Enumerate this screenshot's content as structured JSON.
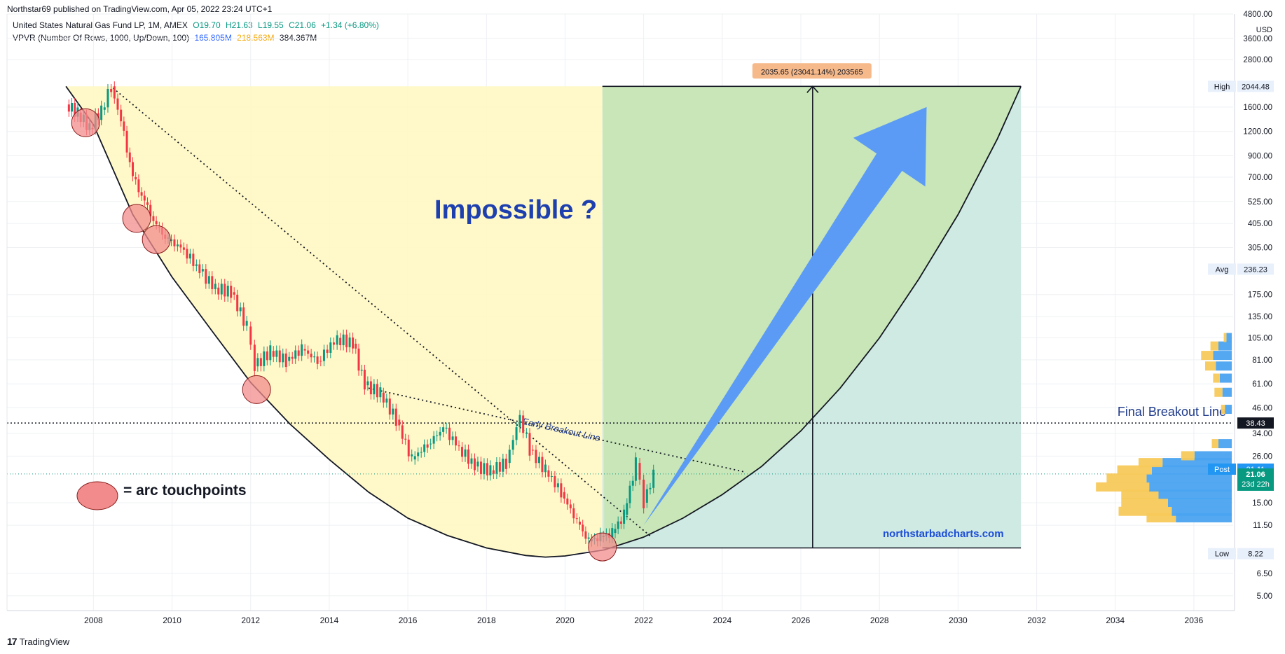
{
  "header": {
    "published": "Northstar69 published on TradingView.com, Apr 05, 2022 23:24 UTC+1"
  },
  "legend": {
    "symbol": "United States Natural Gas Fund LP, 1M, AMEX",
    "open": "O19.70",
    "high": "H21.63",
    "low": "L19.55",
    "close": "C21.06",
    "change": "+1.34 (+6.80%)",
    "vpvr_label": "VPVR (Number Of Rows, 1000, Up/Down, 100)",
    "vpvr_up": "165.805M",
    "vpvr_down": "218.563M",
    "vpvr_total": "384.367M"
  },
  "footer": {
    "brand": "TradingView",
    "logo": "17"
  },
  "colors": {
    "up": "#089981",
    "down": "#f23645",
    "yellow_zone": "#fff7c2",
    "green_zone": "#c8e6b8",
    "teal_zone": "#cfe9e3",
    "arrow": "#5b9bf5",
    "touch": "#f28c8c",
    "vp_up": "#4aa3f0",
    "vp_down": "#f7c95a"
  },
  "chart_data": {
    "type": "candlestick",
    "title": "",
    "yscale": "log",
    "ylim": [
      4.2,
      4800
    ],
    "xlim": [
      2005.8,
      2037.0
    ],
    "x_ticks": [
      "2008",
      "2010",
      "2012",
      "2014",
      "2016",
      "2018",
      "2020",
      "2022",
      "2024",
      "2026",
      "2028",
      "2030",
      "2032",
      "2034",
      "2036"
    ],
    "y_ticks": [
      "4800.00",
      "3600.00",
      "2800.00",
      "1600.00",
      "1200.00",
      "900.00",
      "700.00",
      "525.00",
      "405.00",
      "305.00",
      "175.00",
      "135.00",
      "105.00",
      "81.00",
      "61.00",
      "46.00",
      "34.00",
      "26.00",
      "15.00",
      "11.50",
      "6.50",
      "5.00"
    ],
    "currency": "USD",
    "price_labels": {
      "high": {
        "label": "High",
        "value": "2044.48"
      },
      "avg": {
        "label": "Avg",
        "value": "236.23"
      },
      "breakout": {
        "value": "38.43"
      },
      "post": {
        "label": "Post",
        "value": "21.11"
      },
      "last": {
        "value": "21.06",
        "countdown": "23d 22h"
      },
      "low": {
        "label": "Low",
        "value": "8.22"
      }
    },
    "annotations": {
      "question": "Impossible ?",
      "early_breakout": "Early Breakout Line",
      "final_breakout": "Final Breakout Line",
      "legend_touch": "= arc touchpoints",
      "watermark": "northstarbadcharts.com",
      "measure": "2035.65 (23041.14%) 203565"
    },
    "series_points": [
      [
        2007.3,
        1650
      ],
      [
        2007.6,
        1500
      ],
      [
        2007.9,
        1250
      ],
      [
        2008.2,
        1550
      ],
      [
        2008.45,
        2044
      ],
      [
        2008.7,
        1350
      ],
      [
        2009.0,
        700
      ],
      [
        2009.3,
        520
      ],
      [
        2009.6,
        390
      ],
      [
        2009.9,
        330
      ],
      [
        2010.3,
        300
      ],
      [
        2010.7,
        230
      ],
      [
        2011.1,
        190
      ],
      [
        2011.5,
        180
      ],
      [
        2011.9,
        120
      ],
      [
        2012.1,
        75
      ],
      [
        2012.5,
        90
      ],
      [
        2012.9,
        80
      ],
      [
        2013.3,
        92
      ],
      [
        2013.7,
        80
      ],
      [
        2014.2,
        105
      ],
      [
        2014.6,
        98
      ],
      [
        2014.9,
        60
      ],
      [
        2015.3,
        55
      ],
      [
        2015.7,
        40
      ],
      [
        2016.1,
        25
      ],
      [
        2016.5,
        30
      ],
      [
        2016.9,
        36
      ],
      [
        2017.3,
        29
      ],
      [
        2017.7,
        23
      ],
      [
        2018.1,
        22
      ],
      [
        2018.5,
        24
      ],
      [
        2018.85,
        42
      ],
      [
        2019.1,
        28
      ],
      [
        2019.5,
        22
      ],
      [
        2019.9,
        17
      ],
      [
        2020.3,
        12
      ],
      [
        2020.6,
        9.5
      ],
      [
        2020.9,
        10
      ],
      [
        2021.2,
        10.5
      ],
      [
        2021.5,
        13
      ],
      [
        2021.8,
        24
      ],
      [
        2022.0,
        15
      ],
      [
        2022.25,
        21.06
      ]
    ],
    "arc_points": [
      [
        2007.3,
        2044
      ],
      [
        2008.0,
        1300
      ],
      [
        2009.0,
        450
      ],
      [
        2010.0,
        215
      ],
      [
        2011.0,
        115
      ],
      [
        2012.0,
        62
      ],
      [
        2013.0,
        38
      ],
      [
        2014.0,
        25
      ],
      [
        2015.0,
        17
      ],
      [
        2016.0,
        12.5
      ],
      [
        2017.0,
        10.2
      ],
      [
        2018.0,
        8.8
      ],
      [
        2019.0,
        8.05
      ],
      [
        2019.5,
        7.9
      ],
      [
        2020.0,
        8.0
      ],
      [
        2021.0,
        8.6
      ],
      [
        2022.0,
        10.0
      ],
      [
        2023.0,
        12.5
      ],
      [
        2024.0,
        16.5
      ],
      [
        2025.0,
        23
      ],
      [
        2026.0,
        35
      ],
      [
        2027.0,
        58
      ],
      [
        2028.0,
        105
      ],
      [
        2029.0,
        210
      ],
      [
        2030.0,
        450
      ],
      [
        2031.0,
        1100
      ],
      [
        2031.6,
        2044
      ]
    ],
    "touchpoints": [
      [
        2007.8,
        1330
      ],
      [
        2009.1,
        430
      ],
      [
        2009.6,
        335
      ],
      [
        2012.15,
        57
      ],
      [
        2020.95,
        8.9
      ]
    ],
    "early_breakout_points": [
      [
        2015.0,
        58
      ],
      [
        2024.6,
        21.5
      ]
    ],
    "downtrend_points": [
      [
        2008.5,
        2000
      ],
      [
        2022.2,
        10
      ]
    ],
    "final_breakout_value": 38.43,
    "last_close": 21.06,
    "zones": {
      "yellow": {
        "x0": 2007.3,
        "x1": 2020.95,
        "top": 2044
      },
      "green_top": {
        "x0": 2020.95,
        "x1": 2031.6,
        "y_top": 2044
      },
      "teal": {
        "x0": 2020.95,
        "x1": 2031.6,
        "y_bottom": 8.8
      }
    },
    "measure_x": 2026.3,
    "arrow": {
      "from": [
        2022.0,
        11.5
      ],
      "to": [
        2029.2,
        1600
      ]
    },
    "volume_profile": [
      {
        "price": 12.5,
        "up": 0.42,
        "down": 0.22
      },
      {
        "price": 13.5,
        "up": 0.45,
        "down": 0.4
      },
      {
        "price": 15.0,
        "up": 0.48,
        "down": 0.35
      },
      {
        "price": 16.5,
        "up": 0.55,
        "down": 0.28
      },
      {
        "price": 18.0,
        "up": 0.62,
        "down": 0.4
      },
      {
        "price": 20.0,
        "up": 0.64,
        "down": 0.3
      },
      {
        "price": 22.0,
        "up": 0.6,
        "down": 0.26
      },
      {
        "price": 24.0,
        "up": 0.52,
        "down": 0.18
      },
      {
        "price": 26.0,
        "up": 0.28,
        "down": 0.1
      },
      {
        "price": 30.0,
        "up": 0.1,
        "down": 0.05
      },
      {
        "price": 45.0,
        "up": 0.05,
        "down": 0.03
      },
      {
        "price": 55.0,
        "up": 0.07,
        "down": 0.06
      },
      {
        "price": 65.0,
        "up": 0.09,
        "down": 0.05
      },
      {
        "price": 75.0,
        "up": 0.12,
        "down": 0.08
      },
      {
        "price": 85.0,
        "up": 0.14,
        "down": 0.09
      },
      {
        "price": 95.0,
        "up": 0.1,
        "down": 0.06
      },
      {
        "price": 105.0,
        "up": 0.04,
        "down": 0.02
      }
    ]
  }
}
